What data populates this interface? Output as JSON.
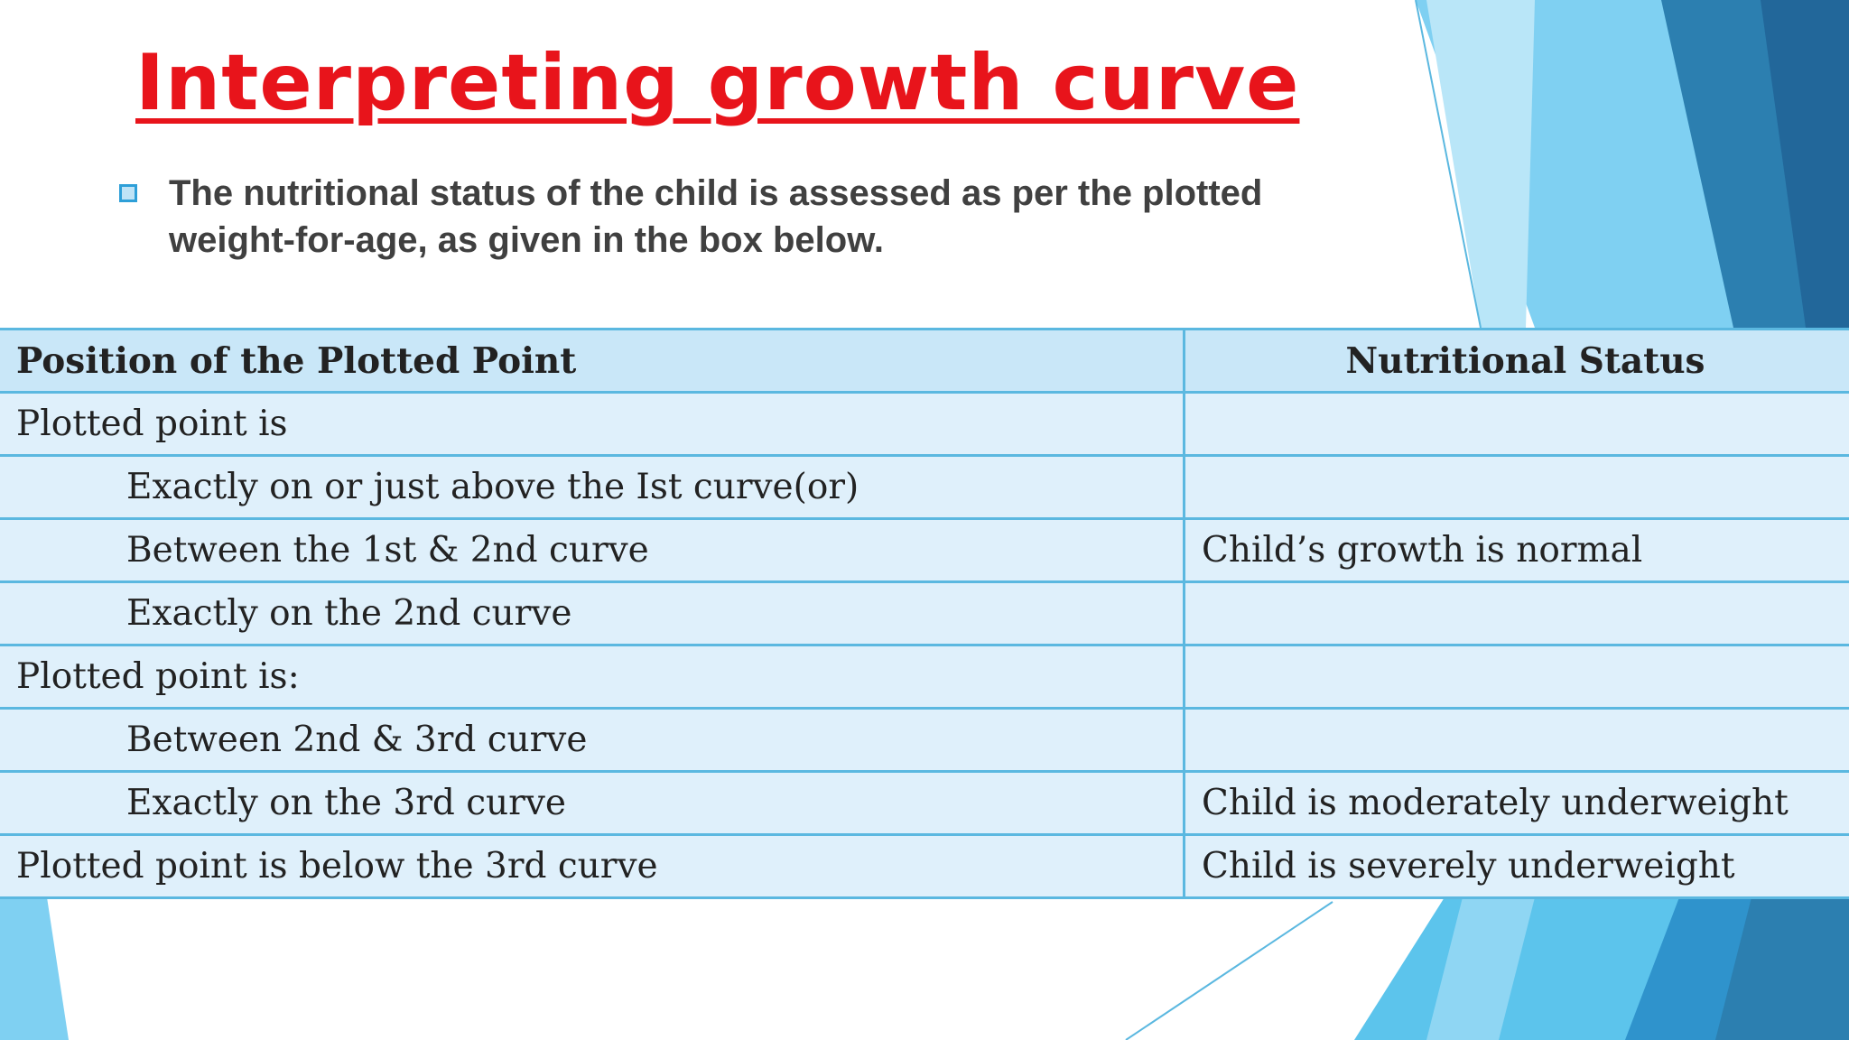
{
  "title": "Interpreting growth curve",
  "bullet": "The nutritional status of the child is assessed as per the plotted weight-for-age, as given in the box below.",
  "table": {
    "header": [
      "Position of the Plotted Point",
      "Nutritional Status"
    ],
    "groups": [
      {
        "heading": {
          "text": "Plotted point is"
        },
        "items": [
          {
            "text": "Exactly on or just above the Ist curve(or)"
          },
          {
            "text": "Between the 1st & 2nd curve",
            "status": "Child’s growth is normal"
          },
          {
            "text": "Exactly on the 2nd curve"
          }
        ]
      },
      {
        "heading": {
          "text": "Plotted point is:"
        },
        "items": [
          {
            "text": "Between 2nd & 3rd curve"
          },
          {
            "text": "Exactly on the 3rd curve",
            "status": "Child is moderately underweight"
          }
        ]
      },
      {
        "heading": {
          "text": "Plotted point is below the 3rd curve",
          "status": "Child is severely underweight"
        }
      }
    ]
  }
}
